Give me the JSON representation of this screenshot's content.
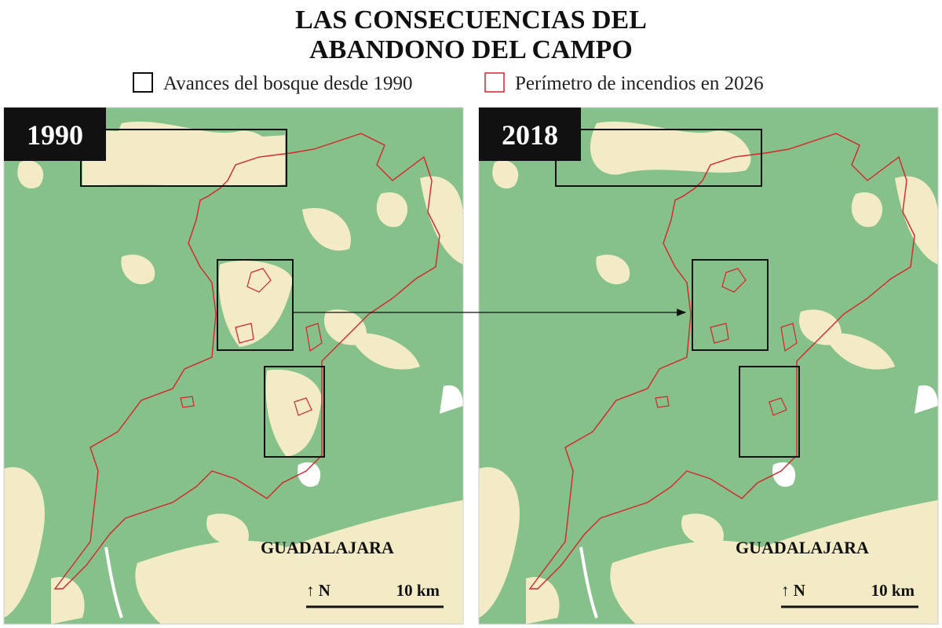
{
  "header": {
    "title": [
      "LAS CONSECUENCIAS DEL",
      "ABANDONO DEL CAMPO"
    ]
  },
  "legend": [
    "Avances del bosque desde 1990",
    "Perímetro de incendios en 2026"
  ],
  "panels": [
    {
      "year": "1990",
      "place": "GUADALAJARA",
      "north": "↑ N",
      "scale": "10 km"
    },
    {
      "year": "2018",
      "place": "GUADALAJARA",
      "north": "↑ N",
      "scale": "10 km"
    }
  ]
}
